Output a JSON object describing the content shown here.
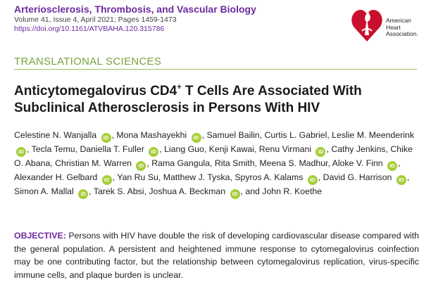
{
  "header": {
    "journal_name": "Arteriosclerosis, Thrombosis, and Vascular Biology",
    "volume_line": "Volume 41, Issue 4, April 2021; Pages 1459-1473",
    "doi": "https://doi.org/10.1161/ATVBAHA.120.315786"
  },
  "logo": {
    "lines": [
      "American",
      "Heart",
      "Association."
    ],
    "color": "#c8102e"
  },
  "article": {
    "section": "TRANSLATIONAL SCIENCES",
    "title_part1": "Anticytomegalovirus CD4",
    "title_sup": "+",
    "title_part2": " T Cells Are Associated With Subclinical Atherosclerosis in Persons With HIV",
    "authors": [
      "Celestine N. Wanjalla",
      "Mona Mashayekhi",
      "Samuel Bailin",
      "Curtis L. Gabriel",
      "Leslie M. Meenderink",
      "Tecla Temu",
      "Daniella T. Fuller",
      "Liang Guo",
      "Kenji Kawai",
      "Renu Virmani",
      "Cathy Jenkins",
      "Chike O. Abana",
      "Christian M. Warren",
      "Rama Gangula",
      "Rita Smith",
      "Meena S. Madhur",
      "Aloke V. Finn",
      "Alexander H. Gelbard",
      "Yan Ru Su",
      "Matthew J. Tyska",
      "Spyros A. Kalams",
      "David G. Harrison",
      "Simon A. Mallal",
      "Tarek S. Absi",
      "Joshua A. Beckman",
      "John R. Koethe"
    ],
    "orcid_after": [
      0,
      1,
      4,
      6,
      9,
      12,
      16,
      17,
      20,
      21,
      22,
      24
    ],
    "orcid_glyph": "iD",
    "and_word": "and",
    "abstract_label": "OBJECTIVE:",
    "abstract_text": "Persons with HIV have double the risk of developing cardiovascular disease compared with the general population. A persistent and heightened immune response to cytomegalovirus coinfection may be one contributing factor, but the relationship between cytomegalovirus replication, virus-specific immune cells, and plaque burden is unclear."
  }
}
